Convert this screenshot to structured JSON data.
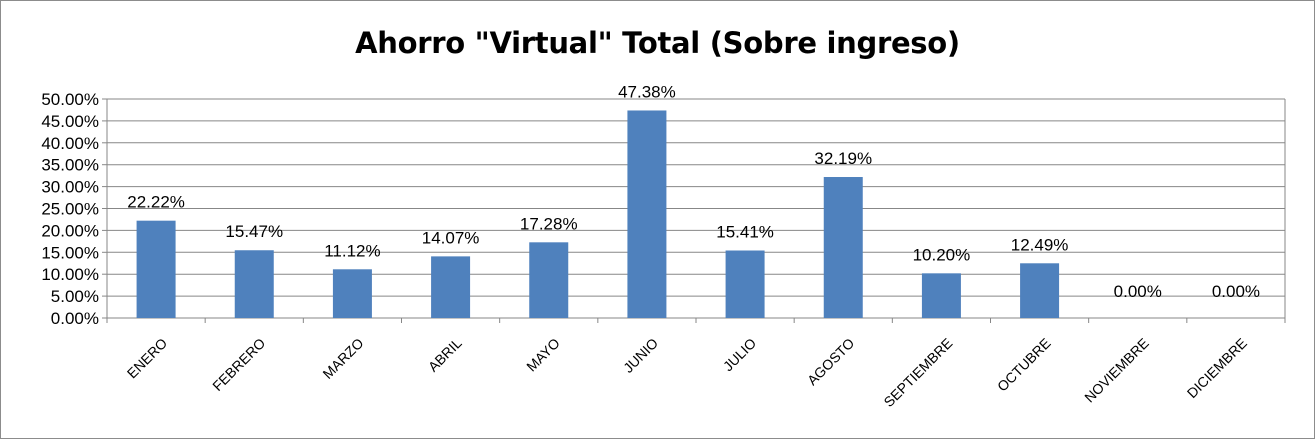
{
  "chart_data": {
    "type": "bar",
    "title": "Ahorro \"Virtual\" Total (Sobre ingreso)",
    "xlabel": "",
    "ylabel": "",
    "categories": [
      "ENERO",
      "FEBRERO",
      "MARZO",
      "ABRIL",
      "MAYO",
      "JUNIO",
      "JULIO",
      "AGOSTO",
      "SEPTIEMBRE",
      "OCTUBRE",
      "NOVIEMBRE",
      "DICIEMBRE"
    ],
    "values": [
      22.22,
      15.47,
      11.12,
      14.07,
      17.28,
      47.38,
      15.41,
      32.19,
      10.2,
      12.49,
      0.0,
      0.0
    ],
    "data_labels": [
      "22.22%",
      "15.47%",
      "11.12%",
      "14.07%",
      "17.28%",
      "47.38%",
      "15.41%",
      "32.19%",
      "10.20%",
      "12.49%",
      "0.00%",
      "0.00%"
    ],
    "y_ticks": [
      "0.00%",
      "5.00%",
      "10.00%",
      "15.00%",
      "20.00%",
      "25.00%",
      "30.00%",
      "35.00%",
      "40.00%",
      "45.00%",
      "50.00%"
    ],
    "ylim": [
      0,
      50
    ],
    "y_step": 5,
    "grid": true,
    "legend": "none",
    "bar_color": "#4f81bd",
    "grid_color": "#878787"
  }
}
